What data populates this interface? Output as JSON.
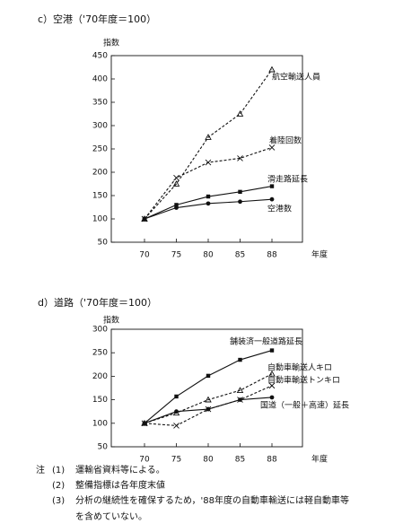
{
  "chart_data": [
    {
      "type": "line",
      "title": "c）空港（'70年度＝100）",
      "y_label": "指数",
      "x_label": "年度",
      "categories": [
        "70",
        "75",
        "80",
        "85",
        "88"
      ],
      "ylim": [
        50,
        450
      ],
      "yticks": [
        50,
        100,
        150,
        200,
        250,
        300,
        350,
        400,
        450
      ],
      "series": [
        {
          "name": "航空輸送人員",
          "color": "#111111",
          "dashed": true,
          "marker": "triangle",
          "values": [
            100,
            175,
            275,
            325,
            420
          ]
        },
        {
          "name": "着陸回数",
          "color": "#111111",
          "dashed": true,
          "marker": "cross",
          "values": [
            100,
            188,
            221,
            230,
            253
          ]
        },
        {
          "name": "滑走路延長",
          "color": "#111111",
          "dashed": false,
          "marker": "square",
          "values": [
            100,
            130,
            148,
            158,
            170
          ]
        },
        {
          "name": "空港数",
          "color": "#111111",
          "dashed": false,
          "marker": "circle",
          "values": [
            100,
            124,
            133,
            137,
            142
          ]
        }
      ]
    },
    {
      "type": "line",
      "title": "d）道路（'70年度＝100）",
      "y_label": "指数",
      "x_label": "年度",
      "categories": [
        "70",
        "75",
        "80",
        "85",
        "88"
      ],
      "ylim": [
        50,
        300
      ],
      "yticks": [
        50,
        100,
        150,
        200,
        250,
        300
      ],
      "series": [
        {
          "name": "舗装済一般道路延長",
          "color": "#111111",
          "dashed": false,
          "marker": "square",
          "values": [
            100,
            157,
            201,
            235,
            255
          ]
        },
        {
          "name": "自動車輸送人キロ",
          "color": "#111111",
          "dashed": true,
          "marker": "triangle",
          "values": [
            100,
            122,
            150,
            170,
            205
          ]
        },
        {
          "name": "自動車輸送トンキロ",
          "color": "#111111",
          "dashed": true,
          "marker": "cross",
          "values": [
            100,
            95,
            130,
            150,
            180
          ]
        },
        {
          "name": "国道（一般＋高速）延長",
          "color": "#111111",
          "dashed": false,
          "marker": "circle",
          "values": [
            100,
            125,
            130,
            150,
            155
          ]
        }
      ]
    }
  ],
  "notes": {
    "label": "注",
    "items": [
      {
        "number": "(1)",
        "text": "運輸省資料等による。"
      },
      {
        "number": "(2)",
        "text": "整備指標は各年度末値"
      },
      {
        "number": "(3)",
        "text": "分析の継続性を確保するため，'88年度の自動車輸送には軽自動車等",
        "continuation": "を含めていない。"
      }
    ]
  }
}
